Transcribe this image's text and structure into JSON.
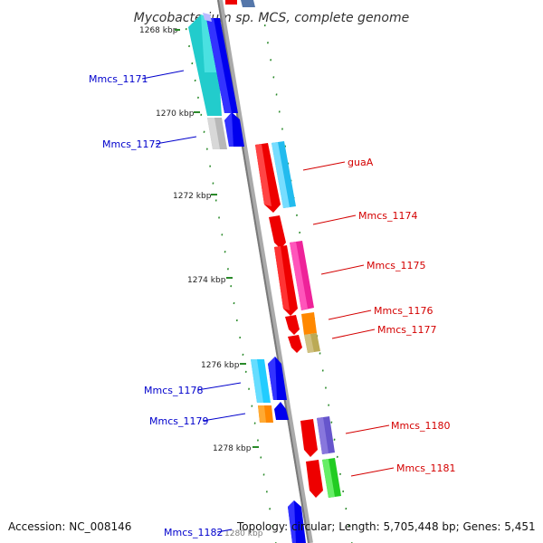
{
  "title": "Mycobacterium sp. MCS, complete genome",
  "footer": {
    "accession": "Accession: NC_008146",
    "topology": "Topology: circular; Length: 5,705,448 bp; Genes: 5,451"
  },
  "colors": {
    "backbone": "#888888",
    "tick": "#2a8a2a",
    "forward_label": "#d40000",
    "reverse_label": "#0000cc"
  },
  "kbp_labels": [
    "1268 kbp",
    "1270 kbp",
    "1272 kbp",
    "1274 kbp",
    "1276 kbp",
    "1278 kbp",
    "1280 kbp"
  ],
  "gene_labels": {
    "mmcs_1171": "Mmcs_1171",
    "mmcs_1172": "Mmcs_1172",
    "guaA": "guaA",
    "mmcs_1174": "Mmcs_1174",
    "mmcs_1175": "Mmcs_1175",
    "mmcs_1176": "Mmcs_1176",
    "mmcs_1177": "Mmcs_1177",
    "mmcs_1178": "Mmcs_1178",
    "mmcs_1179": "Mmcs_1179",
    "mmcs_1180": "Mmcs_1180",
    "mmcs_1181": "Mmcs_1181",
    "mmcs_1182": "Mmcs_1182"
  }
}
